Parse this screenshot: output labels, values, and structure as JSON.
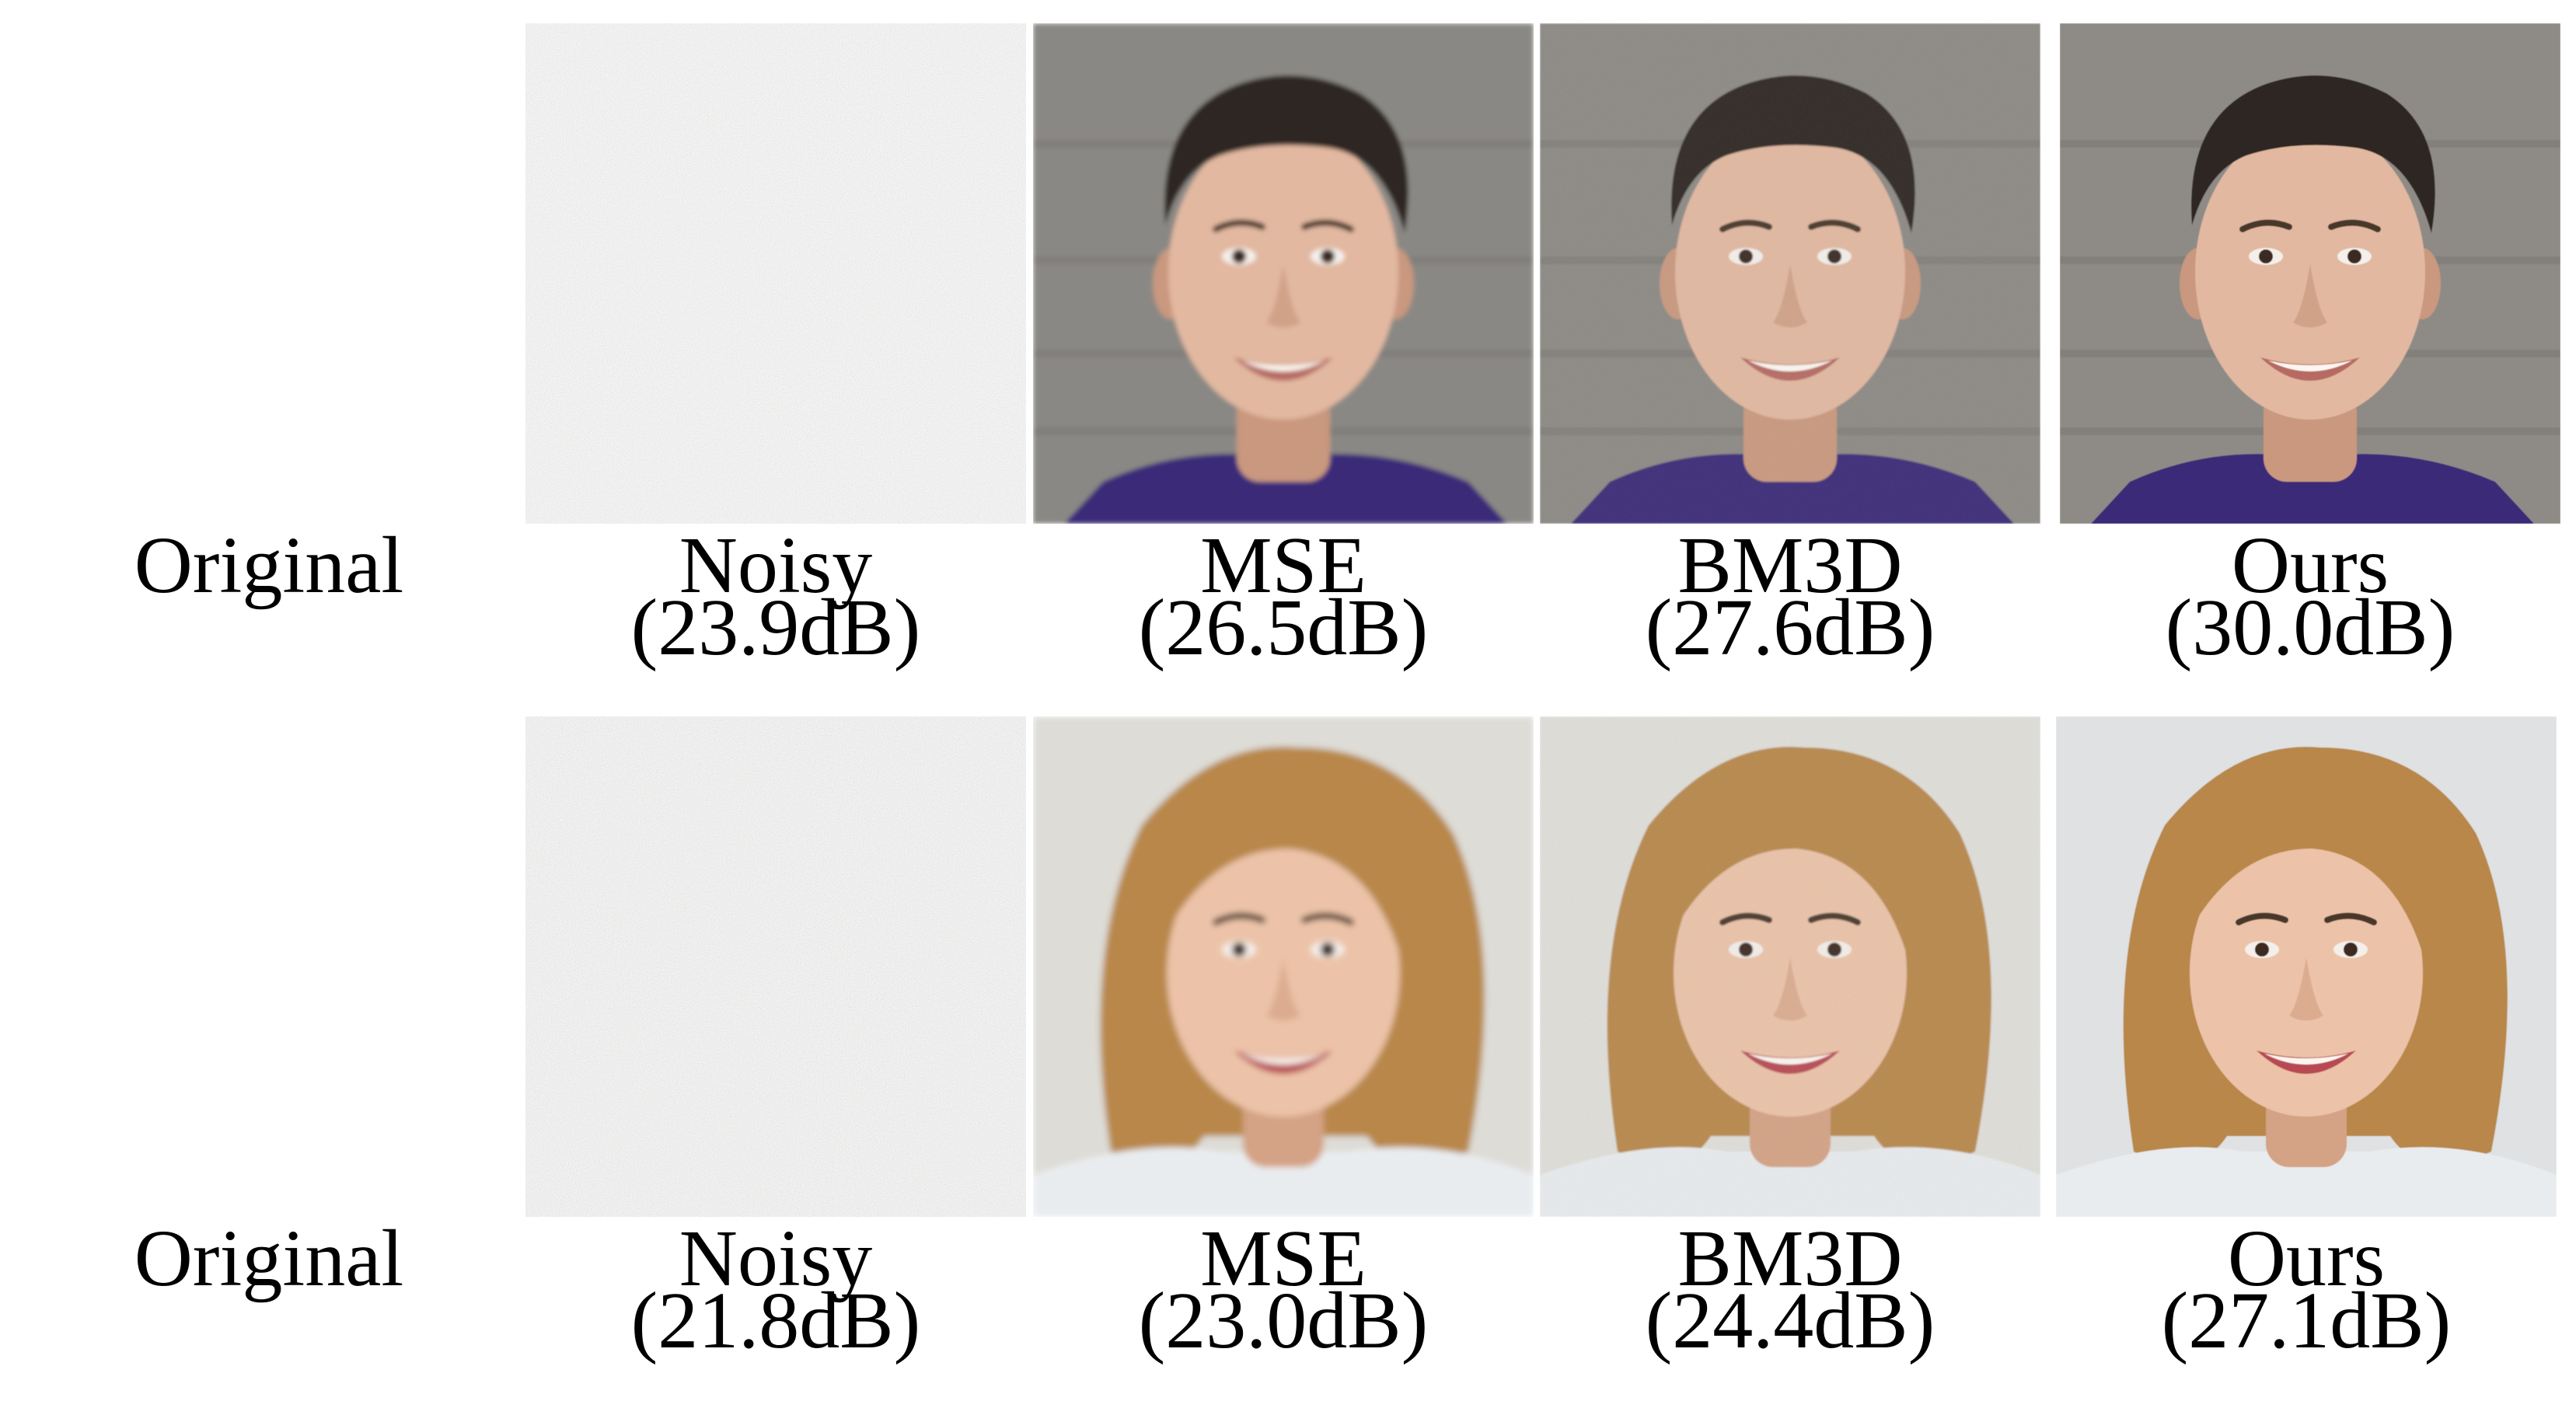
{
  "rows": [
    {
      "subject": "male",
      "panels": [
        {
          "method": "Original",
          "psnr": "",
          "background": "#8e8b86",
          "noise": 0,
          "blur": 0
        },
        {
          "method": "Noisy",
          "psnr": "(23.9dB)",
          "background": "#8d8a85",
          "noise": 0.45,
          "blur": 0
        },
        {
          "method": "MSE",
          "psnr": "(26.5dB)",
          "background": "#8a8884",
          "noise": 0,
          "blur": 3
        },
        {
          "method": "BM3D",
          "psnr": "(27.6dB)",
          "background": "#8c8984",
          "noise": 0.15,
          "blur": 1
        },
        {
          "method": "Ours",
          "psnr": "(30.0dB)",
          "background": "#8e8b86",
          "noise": 0,
          "blur": 0.5
        }
      ],
      "colors": {
        "skin": "#e2b8a0",
        "skin_shade": "#c9987e",
        "hair": "#2e2620",
        "shirt": "#3b2a78",
        "lips": "#b66a62"
      }
    },
    {
      "subject": "female",
      "panels": [
        {
          "method": "Original",
          "psnr": "",
          "background": "#e4e6e8",
          "noise": 0,
          "blur": 0
        },
        {
          "method": "Noisy",
          "psnr": "(21.8dB)",
          "background": "#dcdcd8",
          "noise": 0.5,
          "blur": 0
        },
        {
          "method": "MSE",
          "psnr": "(23.0dB)",
          "background": "#dddcd6",
          "noise": 0,
          "blur": 4
        },
        {
          "method": "BM3D",
          "psnr": "(24.4dB)",
          "background": "#e0dfda",
          "noise": 0.18,
          "blur": 1
        },
        {
          "method": "Ours",
          "psnr": "(27.1dB)",
          "background": "#dfe1e2",
          "noise": 0,
          "blur": 0.5
        }
      ],
      "colors": {
        "skin": "#ecc3a8",
        "skin_shade": "#d4a284",
        "hair": "#b8874a",
        "shirt": "#e9ecef",
        "lips": "#b84a52"
      }
    }
  ]
}
